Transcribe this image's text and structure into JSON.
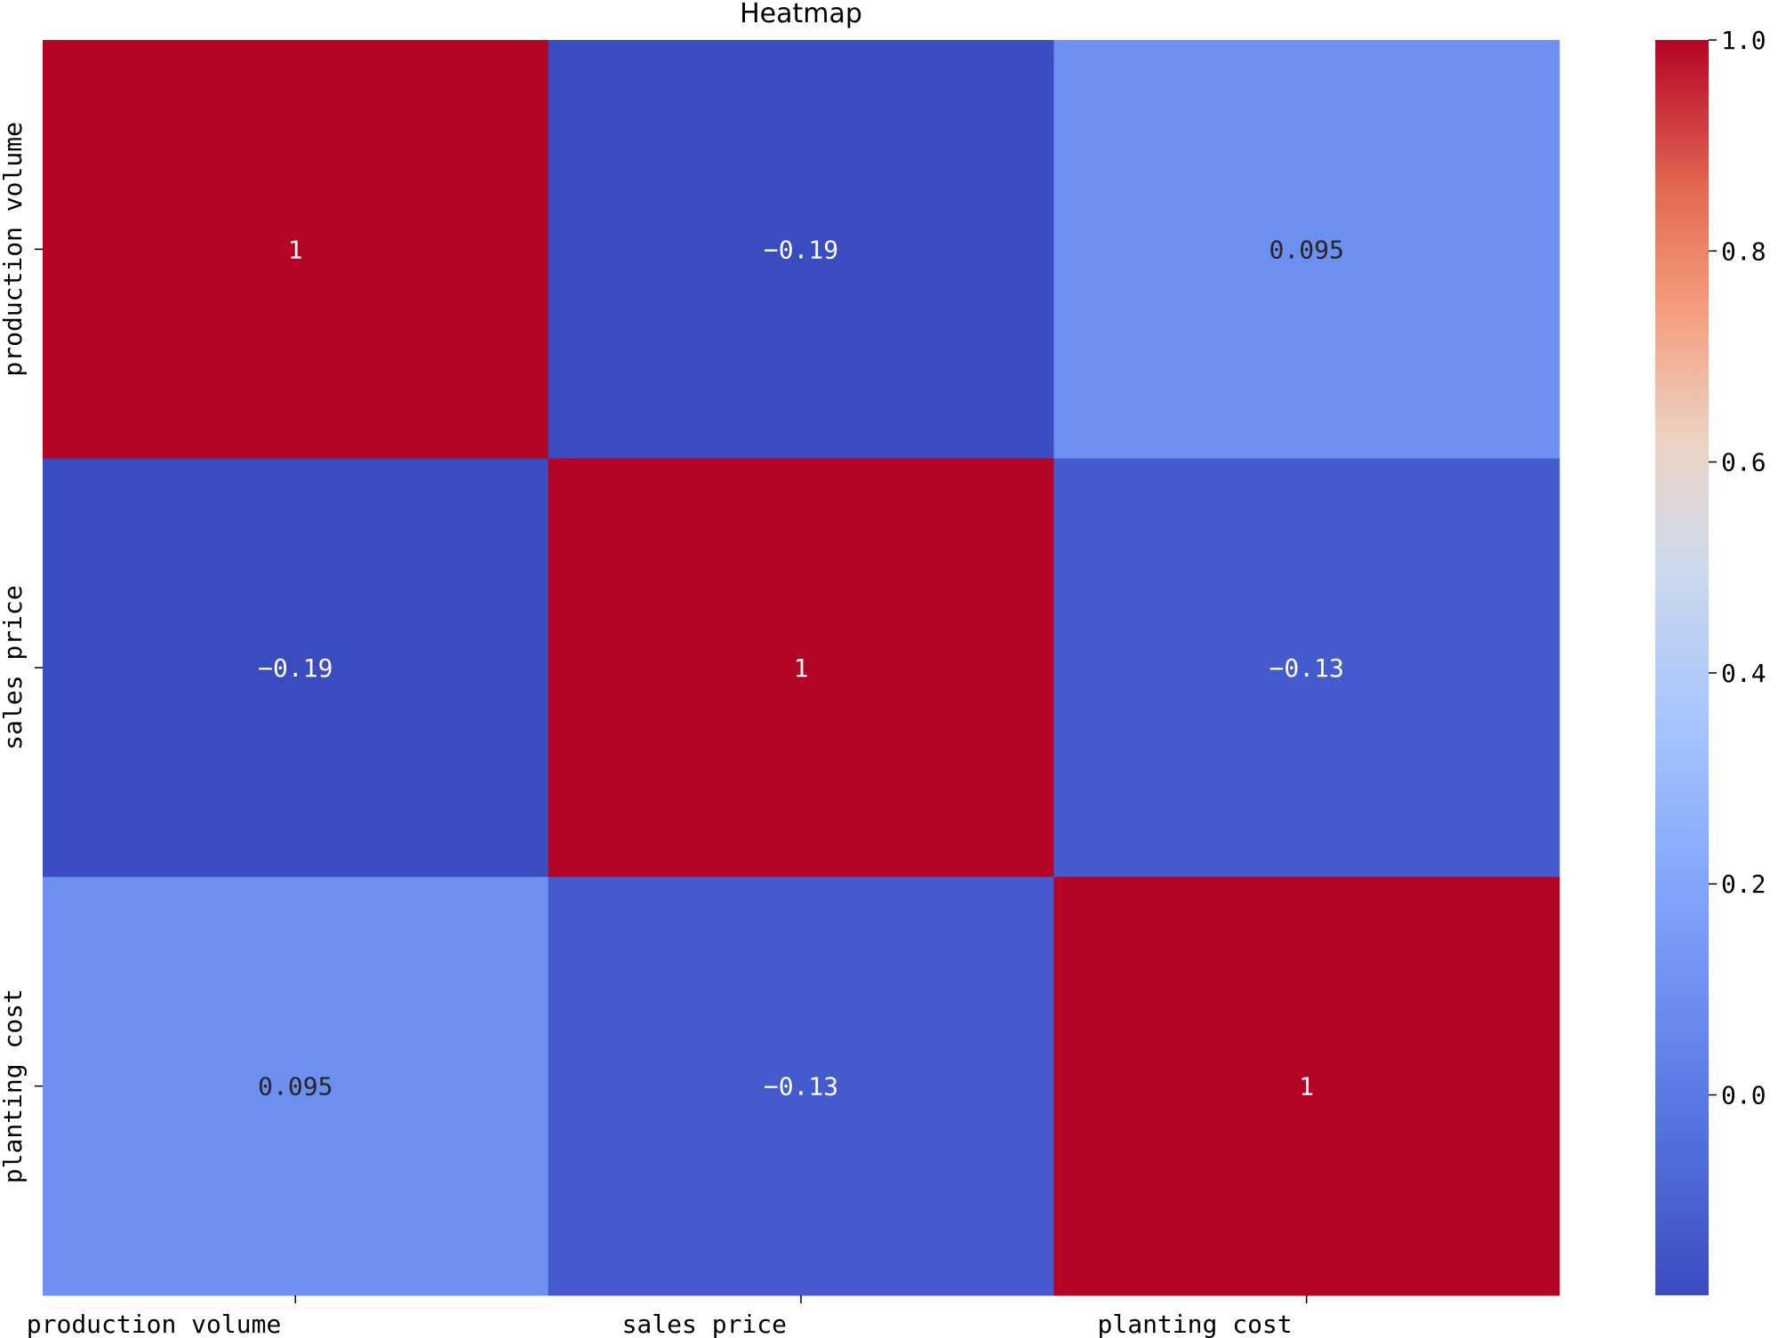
{
  "chart_data": {
    "type": "heatmap",
    "title": "Heatmap",
    "x_categories": [
      "production volume",
      "sales price",
      "planting cost"
    ],
    "y_categories": [
      "production volume",
      "sales price",
      "planting cost"
    ],
    "values": [
      [
        1,
        -0.19,
        0.095
      ],
      [
        -0.19,
        1,
        -0.13
      ],
      [
        0.095,
        -0.13,
        1
      ]
    ],
    "annotations": [
      [
        "1",
        "-0.19",
        "0.095"
      ],
      [
        "-0.19",
        "1",
        "-0.13"
      ],
      [
        "0.095",
        "-0.13",
        "1"
      ]
    ],
    "colormap": "coolwarm",
    "vmin": -0.19,
    "vmax": 1.0,
    "colorbar": {
      "ticks": [
        0.0,
        0.2,
        0.4,
        0.6,
        0.8,
        1.0
      ],
      "tick_labels": [
        "0.0",
        "0.2",
        "0.4",
        "0.6",
        "0.8",
        "1.0"
      ]
    }
  }
}
